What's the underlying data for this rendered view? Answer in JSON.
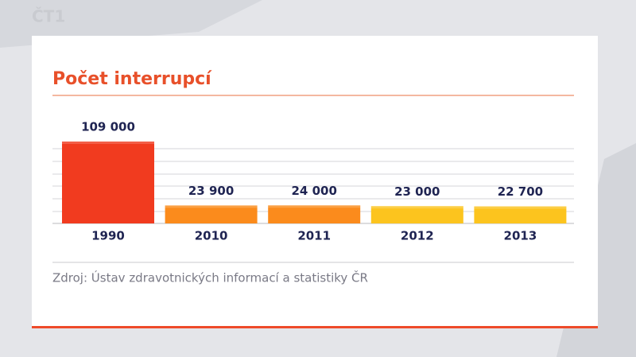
{
  "channel": "ČT1",
  "chart_data": {
    "type": "bar",
    "title": "Počet interrupcí",
    "categories": [
      "1990",
      "2010",
      "2011",
      "2012",
      "2013"
    ],
    "values": [
      109000,
      23900,
      24000,
      23000,
      22700
    ],
    "value_labels": [
      "109 000",
      "23 900",
      "24 000",
      "23 000",
      "22 700"
    ],
    "colors": [
      "#f13b1f",
      "#fb8b1c",
      "#fb8b1c",
      "#fcc41e",
      "#fcc41e"
    ],
    "ylim": [
      0,
      109000
    ],
    "source": "Zdroj: Ústav zdravotnických informací a statistiky ČR"
  }
}
